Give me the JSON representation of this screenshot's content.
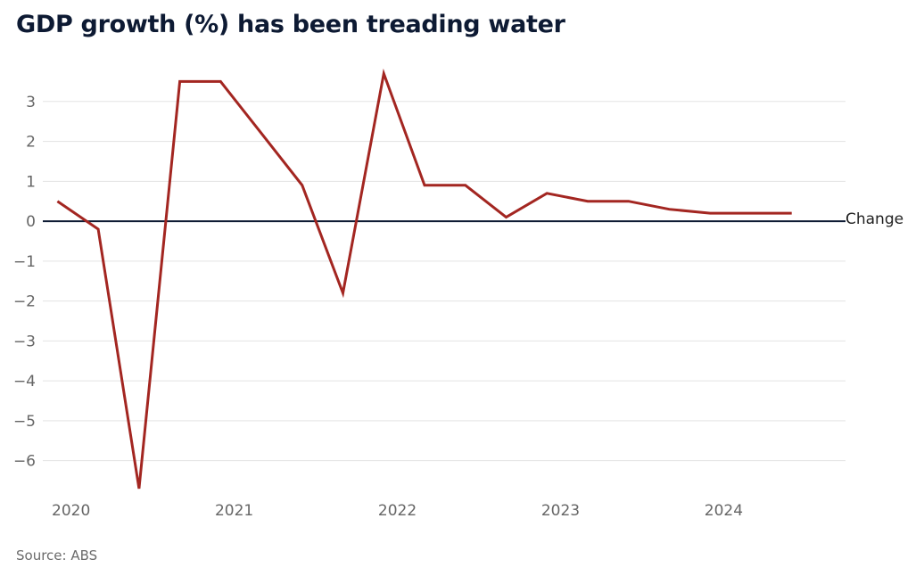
{
  "page": {
    "title": "GDP growth (%) has been treading water",
    "source": "Source: ABS"
  },
  "chart_data": {
    "type": "line",
    "title": "GDP growth (%) has been treading water",
    "xlabel": "",
    "ylabel": "",
    "xlim": [
      2019.92,
      2024.67
    ],
    "ylim": [
      -6.7,
      3.8
    ],
    "x_ticks": [
      2020,
      2021,
      2022,
      2023,
      2024
    ],
    "y_ticks": [
      -6,
      -5,
      -4,
      -3,
      -2,
      -1,
      0,
      1,
      2,
      3
    ],
    "y_tick_labels": [
      "−6",
      "−5",
      "−4",
      "−3",
      "−2",
      "−1",
      "0",
      "1",
      "2",
      "3"
    ],
    "grid": true,
    "legend": "none",
    "series": [
      {
        "name": "Change",
        "color": "#a32621",
        "x": [
          "2019-12",
          "2020-03",
          "2020-06",
          "2020-09",
          "2020-12",
          "2021-03",
          "2021-06",
          "2021-09",
          "2021-12",
          "2022-03",
          "2022-06",
          "2022-09",
          "2022-12",
          "2023-03",
          "2023-06",
          "2023-09",
          "2023-12",
          "2024-03",
          "2024-06"
        ],
        "values": [
          0.5,
          -0.2,
          -6.7,
          3.5,
          3.5,
          2.2,
          0.9,
          -1.8,
          3.7,
          0.9,
          0.9,
          0.1,
          0.7,
          0.5,
          0.5,
          0.3,
          0.2,
          0.2,
          0.2
        ]
      }
    ],
    "zero_line_color": "#0d1a33"
  }
}
